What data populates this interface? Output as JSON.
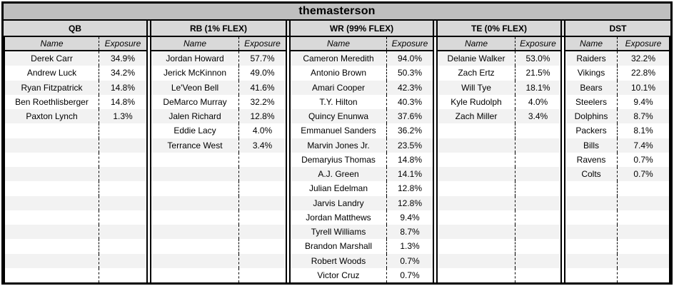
{
  "title": "themasterson",
  "labels": {
    "name": "Name",
    "exposure": "Exposure"
  },
  "colors": {
    "title_bg": "#bfbfbf",
    "header_bg": "#d9d9d9",
    "row_stripe": "#f2f2f2",
    "border": "#000000",
    "text": "#000000"
  },
  "row_count": 16,
  "tables": [
    {
      "id": "qb",
      "header": "QB",
      "rows": [
        [
          "Derek Carr",
          "34.9%"
        ],
        [
          "Andrew Luck",
          "34.2%"
        ],
        [
          "Ryan Fitzpatrick",
          "14.8%"
        ],
        [
          "Ben Roethlisberger",
          "14.8%"
        ],
        [
          "Paxton Lynch",
          "1.3%"
        ]
      ]
    },
    {
      "id": "rb",
      "header": "RB (1% FLEX)",
      "rows": [
        [
          "Jordan Howard",
          "57.7%"
        ],
        [
          "Jerick McKinnon",
          "49.0%"
        ],
        [
          "Le'Veon Bell",
          "41.6%"
        ],
        [
          "DeMarco Murray",
          "32.2%"
        ],
        [
          "Jalen Richard",
          "12.8%"
        ],
        [
          "Eddie Lacy",
          "4.0%"
        ],
        [
          "Terrance West",
          "3.4%"
        ]
      ]
    },
    {
      "id": "wr",
      "header": "WR (99% FLEX)",
      "rows": [
        [
          "Cameron Meredith",
          "94.0%"
        ],
        [
          "Antonio Brown",
          "50.3%"
        ],
        [
          "Amari Cooper",
          "42.3%"
        ],
        [
          "T.Y. Hilton",
          "40.3%"
        ],
        [
          "Quincy Enunwa",
          "37.6%"
        ],
        [
          "Emmanuel Sanders",
          "36.2%"
        ],
        [
          "Marvin Jones Jr.",
          "23.5%"
        ],
        [
          "Demaryius Thomas",
          "14.8%"
        ],
        [
          "A.J. Green",
          "14.1%"
        ],
        [
          "Julian Edelman",
          "12.8%"
        ],
        [
          "Jarvis Landry",
          "12.8%"
        ],
        [
          "Jordan Matthews",
          "9.4%"
        ],
        [
          "Tyrell Williams",
          "8.7%"
        ],
        [
          "Brandon Marshall",
          "1.3%"
        ],
        [
          "Robert Woods",
          "0.7%"
        ],
        [
          "Victor Cruz",
          "0.7%"
        ]
      ]
    },
    {
      "id": "te",
      "header": "TE (0% FLEX)",
      "rows": [
        [
          "Delanie Walker",
          "53.0%"
        ],
        [
          "Zach Ertz",
          "21.5%"
        ],
        [
          "Will Tye",
          "18.1%"
        ],
        [
          "Kyle Rudolph",
          "4.0%"
        ],
        [
          "Zach Miller",
          "3.4%"
        ]
      ]
    },
    {
      "id": "dst",
      "header": "DST",
      "rows": [
        [
          "Raiders",
          "32.2%"
        ],
        [
          "Vikings",
          "22.8%"
        ],
        [
          "Bears",
          "10.1%"
        ],
        [
          "Steelers",
          "9.4%"
        ],
        [
          "Dolphins",
          "8.7%"
        ],
        [
          "Packers",
          "8.1%"
        ],
        [
          "Bills",
          "7.4%"
        ],
        [
          "Ravens",
          "0.7%"
        ],
        [
          "Colts",
          "0.7%"
        ]
      ]
    }
  ]
}
